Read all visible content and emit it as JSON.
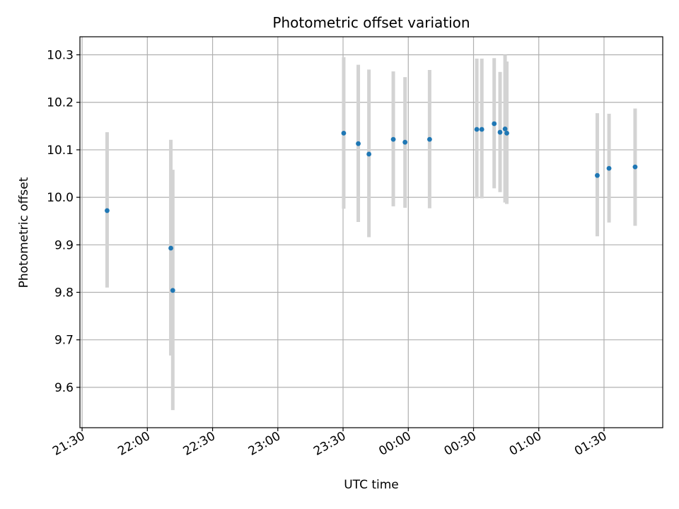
{
  "chart_data": {
    "type": "scatter",
    "title": "Photometric offset variation",
    "xlabel": "UTC time",
    "ylabel": "Photometric offset",
    "x_axis_unit": "minutes after 21:30 UTC",
    "xlim": [
      -1,
      267
    ],
    "ylim": [
      9.515,
      10.338
    ],
    "grid": true,
    "x_ticks": [
      {
        "value": 0,
        "label": "21:30"
      },
      {
        "value": 30,
        "label": "22:00"
      },
      {
        "value": 60,
        "label": "22:30"
      },
      {
        "value": 90,
        "label": "23:00"
      },
      {
        "value": 120,
        "label": "23:30"
      },
      {
        "value": 150,
        "label": "00:00"
      },
      {
        "value": 180,
        "label": "00:30"
      },
      {
        "value": 210,
        "label": "01:00"
      },
      {
        "value": 240,
        "label": "01:30"
      }
    ],
    "y_ticks": [
      {
        "value": 9.6,
        "label": "9.6"
      },
      {
        "value": 9.7,
        "label": "9.7"
      },
      {
        "value": 9.8,
        "label": "9.8"
      },
      {
        "value": 9.9,
        "label": "9.9"
      },
      {
        "value": 10.0,
        "label": "10.0"
      },
      {
        "value": 10.1,
        "label": "10.1"
      },
      {
        "value": 10.2,
        "label": "10.2"
      },
      {
        "value": 10.3,
        "label": "10.3"
      }
    ],
    "series": [
      {
        "marker_color": "#1f77b4",
        "errorbar_color": "#d3d3d3",
        "points": [
          {
            "x": 11.5,
            "y": 9.972,
            "ylo": 9.81,
            "yhi": 10.137
          },
          {
            "x": 40.8,
            "y": 9.893,
            "ylo": 9.667,
            "yhi": 10.121
          },
          {
            "x": 41.7,
            "y": 9.804,
            "ylo": 9.552,
            "yhi": 10.058
          },
          {
            "x": 120.3,
            "y": 10.135,
            "ylo": 9.976,
            "yhi": 10.295
          },
          {
            "x": 127.0,
            "y": 10.113,
            "ylo": 9.948,
            "yhi": 10.279
          },
          {
            "x": 131.9,
            "y": 10.091,
            "ylo": 9.916,
            "yhi": 10.269
          },
          {
            "x": 143.1,
            "y": 10.122,
            "ylo": 9.981,
            "yhi": 10.265
          },
          {
            "x": 148.5,
            "y": 10.116,
            "ylo": 9.978,
            "yhi": 10.253
          },
          {
            "x": 159.8,
            "y": 10.122,
            "ylo": 9.977,
            "yhi": 10.268
          },
          {
            "x": 181.5,
            "y": 10.143,
            "ylo": 9.998,
            "yhi": 10.292
          },
          {
            "x": 183.8,
            "y": 10.143,
            "ylo": 9.998,
            "yhi": 10.292
          },
          {
            "x": 189.5,
            "y": 10.155,
            "ylo": 10.019,
            "yhi": 10.293
          },
          {
            "x": 192.2,
            "y": 10.137,
            "ylo": 10.011,
            "yhi": 10.264
          },
          {
            "x": 194.5,
            "y": 10.144,
            "ylo": 9.989,
            "yhi": 10.3
          },
          {
            "x": 195.3,
            "y": 10.135,
            "ylo": 9.986,
            "yhi": 10.286
          },
          {
            "x": 236.9,
            "y": 10.046,
            "ylo": 9.918,
            "yhi": 10.177
          },
          {
            "x": 242.3,
            "y": 10.061,
            "ylo": 9.947,
            "yhi": 10.176
          },
          {
            "x": 254.3,
            "y": 10.064,
            "ylo": 9.94,
            "yhi": 10.187
          }
        ]
      }
    ]
  }
}
